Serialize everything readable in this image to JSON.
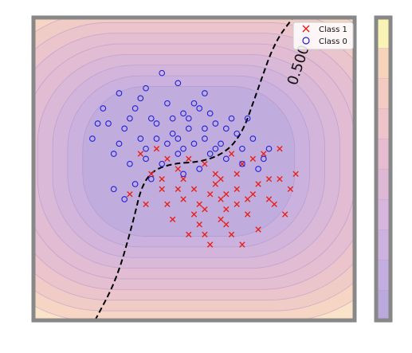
{
  "chart_data": {
    "type": "scatter",
    "title": "",
    "xlabel": "",
    "ylabel": "",
    "xlim": [
      -3.0,
      3.0
    ],
    "ylim": [
      -3.0,
      3.0
    ],
    "grid": false,
    "legend_placement": "top-right",
    "legend": [
      "Class 1",
      "Class 0"
    ],
    "contour_label": "0.500",
    "decision_boundary": {
      "level": 0.5,
      "style": "dashed",
      "color": "#000000",
      "points": [
        [
          -1.85,
          -3.0
        ],
        [
          -1.45,
          -2.2
        ],
        [
          -1.15,
          -1.1
        ],
        [
          -0.95,
          -0.2
        ],
        [
          -0.55,
          0.1
        ],
        [
          0.3,
          0.15
        ],
        [
          0.85,
          0.55
        ],
        [
          1.2,
          1.6
        ],
        [
          1.5,
          2.5
        ],
        [
          1.85,
          3.0
        ]
      ]
    },
    "colorbar": {
      "levels": 10,
      "colors": [
        "#b9a9dd",
        "#c4aee0",
        "#cdb2e0",
        "#d6b6dc",
        "#deb9d6",
        "#e6bdd0",
        "#edc4c9",
        "#f2cbc2",
        "#f6d4bb",
        "#faf3b6"
      ]
    },
    "background_field": {
      "center": [
        -0.1,
        0.15
      ],
      "radius": [
        1.8,
        1.35
      ],
      "outer_color": "#fae3c8",
      "inner_color": "#c2b0dd",
      "line_color": "#9e86c4"
    },
    "series": [
      {
        "name": "Class 1",
        "marker": "x",
        "color": "#e8201a",
        "points": [
          [
            0.5,
            -0.2
          ],
          [
            0.8,
            -0.4
          ],
          [
            1.2,
            -0.3
          ],
          [
            0.6,
            -0.8
          ],
          [
            1.0,
            -0.9
          ],
          [
            1.4,
            -0.6
          ],
          [
            0.3,
            -0.5
          ],
          [
            0.7,
            -1.3
          ],
          [
            -0.2,
            -0.6
          ],
          [
            0.1,
            -1.1
          ],
          [
            1.6,
            -0.2
          ],
          [
            1.8,
            -0.4
          ],
          [
            0.4,
            -0.1
          ],
          [
            0.9,
            0.1
          ],
          [
            1.1,
            0.2
          ],
          [
            1.3,
            0.3
          ],
          [
            0.2,
            -0.8
          ],
          [
            -0.1,
            -1.3
          ],
          [
            0.0,
            -0.4
          ],
          [
            0.6,
            -0.5
          ],
          [
            -0.5,
            0.2
          ],
          [
            -0.8,
            -0.1
          ],
          [
            -0.3,
            0.0
          ],
          [
            -1.0,
            0.3
          ],
          [
            -0.6,
            -0.4
          ],
          [
            -0.9,
            -0.7
          ],
          [
            -1.2,
            -0.5
          ],
          [
            -0.4,
            -1.0
          ],
          [
            -0.7,
            0.4
          ],
          [
            0.8,
            -0.1
          ],
          [
            1.5,
            -0.7
          ],
          [
            0.3,
            -1.5
          ],
          [
            0.5,
            -1.0
          ],
          [
            1.0,
            -0.6
          ],
          [
            -0.2,
            -0.2
          ],
          [
            0.2,
            0.1
          ],
          [
            0.7,
            0.3
          ],
          [
            1.2,
            -1.2
          ],
          [
            0.9,
            -1.5
          ],
          [
            -0.5,
            -0.7
          ],
          [
            0.4,
            -0.3
          ],
          [
            1.7,
            -0.9
          ],
          [
            0.1,
            -0.7
          ],
          [
            -0.3,
            -0.4
          ],
          [
            0.6,
            -1.1
          ],
          [
            0.0,
            -0.9
          ],
          [
            0.8,
            -0.7
          ],
          [
            1.4,
            -0.2
          ],
          [
            -0.1,
            0.2
          ],
          [
            1.9,
            -0.1
          ],
          [
            1.6,
            0.4
          ],
          [
            0.2,
            -1.3
          ],
          [
            -0.6,
            -0.2
          ],
          [
            0.5,
            -0.6
          ],
          [
            1.1,
            -0.5
          ]
        ]
      },
      {
        "name": "Class 0",
        "marker": "o",
        "color": "#1f1fdc",
        "points": [
          [
            -1.1,
            1.2
          ],
          [
            -0.8,
            1.0
          ],
          [
            -0.5,
            1.3
          ],
          [
            -0.2,
            1.1
          ],
          [
            0.1,
            1.2
          ],
          [
            0.4,
            0.9
          ],
          [
            -1.3,
            0.8
          ],
          [
            -1.0,
            0.6
          ],
          [
            -0.7,
            0.9
          ],
          [
            -0.4,
            0.7
          ],
          [
            -0.1,
            0.8
          ],
          [
            0.2,
            0.6
          ],
          [
            0.5,
            0.5
          ],
          [
            0.8,
            0.7
          ],
          [
            1.1,
            0.6
          ],
          [
            1.4,
            0.4
          ],
          [
            -1.6,
            0.9
          ],
          [
            -1.9,
            0.6
          ],
          [
            -1.5,
            0.3
          ],
          [
            -1.2,
            0.1
          ],
          [
            -0.9,
            0.4
          ],
          [
            -0.6,
            0.1
          ],
          [
            -0.3,
            0.3
          ],
          [
            0.0,
            0.5
          ],
          [
            0.3,
            0.3
          ],
          [
            0.6,
            0.2
          ],
          [
            0.9,
            0.1
          ],
          [
            1.2,
            0.0
          ],
          [
            -1.4,
            1.5
          ],
          [
            -0.9,
            1.6
          ],
          [
            -0.3,
            1.7
          ],
          [
            0.2,
            1.5
          ],
          [
            -1.7,
            1.2
          ],
          [
            -0.5,
            0.5
          ],
          [
            0.1,
            0.0
          ],
          [
            -0.2,
            -0.1
          ],
          [
            0.7,
            1.0
          ],
          [
            1.0,
            1.0
          ],
          [
            -1.1,
            -0.3
          ],
          [
            -0.8,
            -0.2
          ],
          [
            -1.5,
            -0.4
          ],
          [
            -1.3,
            -0.6
          ],
          [
            -0.6,
            1.9
          ],
          [
            -1.8,
            0.9
          ],
          [
            -0.4,
            1.0
          ],
          [
            0.3,
            1.1
          ],
          [
            0.6,
            0.8
          ],
          [
            -1.0,
            1.4
          ],
          [
            -0.7,
            0.6
          ],
          [
            0.0,
            1.3
          ],
          [
            1.3,
            0.2
          ],
          [
            -1.4,
            0.5
          ],
          [
            -0.2,
            0.4
          ],
          [
            0.4,
            0.4
          ],
          [
            -0.1,
            1.0
          ],
          [
            -1.2,
            1.0
          ],
          [
            0.9,
            0.4
          ],
          [
            -0.3,
            0.6
          ],
          [
            0.2,
            0.8
          ],
          [
            -0.9,
            0.2
          ]
        ]
      }
    ]
  }
}
